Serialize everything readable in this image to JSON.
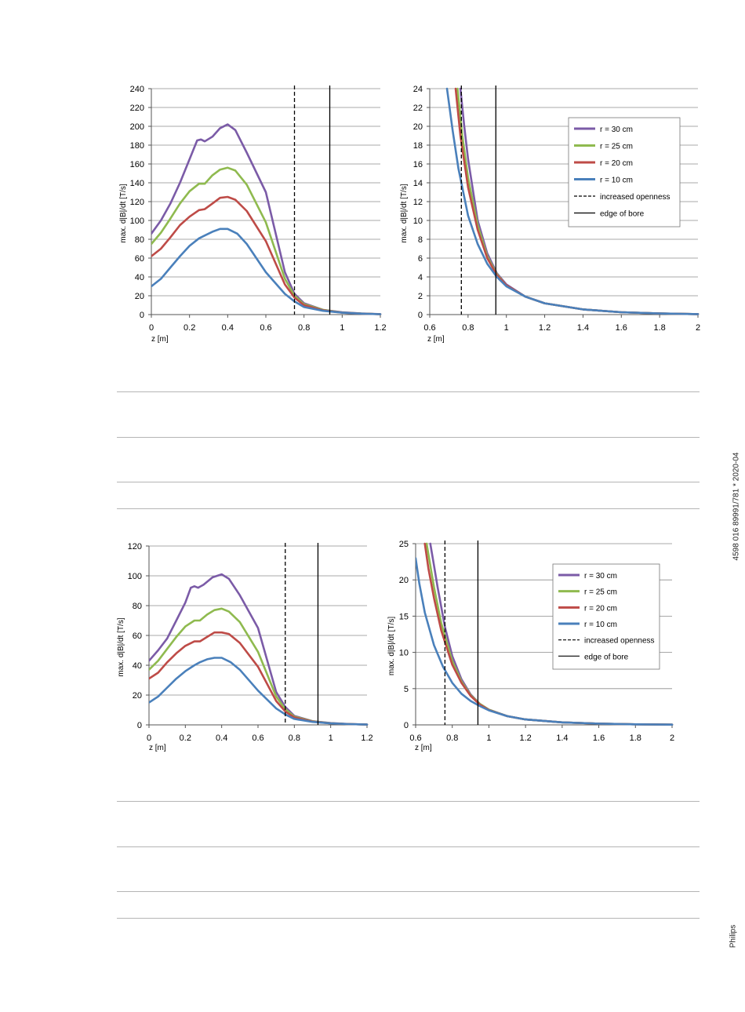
{
  "side": {
    "doc_code": "4598 016 89991/781 * 2020-04",
    "brand": "Philips"
  },
  "colors": {
    "r30": "#7b5ba7",
    "r25": "#8fba4f",
    "r20": "#be4b47",
    "r10": "#4a80bb",
    "grid": "#8c8c8c",
    "vline": "#000000"
  },
  "chart_data": [
    {
      "id": "top-left",
      "type": "line",
      "xlabel": "z [m]",
      "ylabel": "max. d|B|/dt  [T/s]",
      "xlim": [
        0,
        1.2
      ],
      "ylim": [
        0,
        240
      ],
      "xticks": [
        0,
        0.2,
        0.4,
        0.6,
        0.8,
        1,
        1.2
      ],
      "xtick_labels": [
        "0",
        "0.2",
        "0.4",
        "0.6",
        "0.8",
        "1",
        "1.2"
      ],
      "yticks": [
        0,
        20,
        40,
        60,
        80,
        100,
        120,
        140,
        160,
        180,
        200,
        220,
        240
      ],
      "ytick_labels": [
        "0",
        "20",
        "40",
        "60",
        "80",
        "100",
        "120",
        "140",
        "160",
        "180",
        "200",
        "220",
        "240"
      ],
      "grid": "horizontal",
      "vlines": [
        {
          "x": 0.75,
          "style": "dashed"
        },
        {
          "x": 0.935,
          "style": "solid"
        }
      ],
      "series": [
        {
          "name": "r = 30 cm",
          "color_key": "r30",
          "x": [
            0,
            0.05,
            0.1,
            0.15,
            0.2,
            0.24,
            0.26,
            0.28,
            0.32,
            0.36,
            0.4,
            0.44,
            0.5,
            0.6,
            0.7,
            0.75,
            0.8,
            0.9,
            1.0,
            1.1,
            1.2
          ],
          "y": [
            86,
            100,
            118,
            140,
            165,
            185,
            186,
            184,
            189,
            198,
            202,
            196,
            172,
            130,
            45,
            22,
            12,
            5,
            2.5,
            1.2,
            0.5
          ]
        },
        {
          "name": "r = 25 cm",
          "color_key": "r25",
          "x": [
            0,
            0.05,
            0.1,
            0.15,
            0.2,
            0.25,
            0.28,
            0.32,
            0.36,
            0.4,
            0.44,
            0.5,
            0.6,
            0.7,
            0.75,
            0.8,
            0.9,
            1.0,
            1.1,
            1.2
          ],
          "y": [
            75,
            87,
            102,
            118,
            131,
            139,
            139,
            148,
            154,
            156,
            153,
            138,
            98,
            38,
            20,
            11,
            5,
            2.2,
            1.1,
            0.4
          ]
        },
        {
          "name": "r = 20 cm",
          "color_key": "r20",
          "x": [
            0,
            0.05,
            0.1,
            0.15,
            0.2,
            0.25,
            0.28,
            0.32,
            0.36,
            0.4,
            0.44,
            0.5,
            0.6,
            0.7,
            0.75,
            0.8,
            0.9,
            1.0,
            1.1,
            1.2
          ],
          "y": [
            62,
            70,
            82,
            95,
            104,
            111,
            112,
            118,
            124,
            125,
            122,
            110,
            78,
            32,
            18,
            10,
            4.5,
            2,
            1,
            0.4
          ]
        },
        {
          "name": "r = 10 cm",
          "color_key": "r10",
          "x": [
            0,
            0.05,
            0.1,
            0.15,
            0.2,
            0.25,
            0.28,
            0.32,
            0.36,
            0.4,
            0.45,
            0.5,
            0.6,
            0.7,
            0.75,
            0.8,
            0.9,
            1.0,
            1.1,
            1.2
          ],
          "y": [
            30,
            38,
            50,
            62,
            73,
            81,
            84,
            88,
            91,
            91,
            86,
            75,
            45,
            22,
            14,
            8,
            4,
            2,
            1,
            0.4
          ]
        }
      ]
    },
    {
      "id": "top-right",
      "type": "line",
      "xlabel": "z [m]",
      "ylabel": "max. d|B|/dt  [T/s]",
      "xlim": [
        0.6,
        2
      ],
      "ylim": [
        0,
        24
      ],
      "xticks": [
        0.6,
        0.8,
        1,
        1.2,
        1.4,
        1.6,
        1.8,
        2
      ],
      "xtick_labels": [
        "0.6",
        "0.8",
        "1",
        "1.2",
        "1.4",
        "1.6",
        "1.8",
        "2"
      ],
      "yticks": [
        0,
        2,
        4,
        6,
        8,
        10,
        12,
        14,
        16,
        18,
        20,
        22,
        24
      ],
      "ytick_labels": [
        "0",
        "2",
        "4",
        "6",
        "8",
        "10",
        "12",
        "14",
        "16",
        "18",
        "20",
        "22",
        "24"
      ],
      "grid": "horizontal",
      "vlines": [
        {
          "x": 0.765,
          "style": "dashed"
        },
        {
          "x": 0.945,
          "style": "solid"
        }
      ],
      "legend": {
        "position": "top-right",
        "entries": [
          {
            "label": "r = 30 cm",
            "color_key": "r30",
            "style": "thick"
          },
          {
            "label": "r = 25 cm",
            "color_key": "r25",
            "style": "thick"
          },
          {
            "label": "r = 20 cm",
            "color_key": "r20",
            "style": "thick"
          },
          {
            "label": "r = 10 cm",
            "color_key": "r10",
            "style": "thick"
          },
          {
            "label": "increased openness",
            "color_key": "vline",
            "style": "dashed"
          },
          {
            "label": "edge of bore",
            "color_key": "vline",
            "style": "solid"
          }
        ]
      },
      "series": [
        {
          "name": "r = 30 cm",
          "color_key": "r30",
          "x": [
            0.76,
            0.78,
            0.8,
            0.85,
            0.9,
            0.95,
            1.0,
            1.1,
            1.2,
            1.4,
            1.6,
            1.8,
            2.0
          ],
          "y": [
            24,
            20,
            16.5,
            10,
            6.5,
            4.4,
            3.2,
            1.9,
            1.2,
            0.55,
            0.25,
            0.12,
            0.05
          ]
        },
        {
          "name": "r = 25 cm",
          "color_key": "r25",
          "x": [
            0.745,
            0.77,
            0.8,
            0.85,
            0.9,
            0.95,
            1.0,
            1.1,
            1.2,
            1.4,
            1.6,
            1.8,
            2.0
          ],
          "y": [
            24,
            19,
            14.5,
            9.5,
            6.2,
            4.3,
            3.1,
            1.9,
            1.2,
            0.55,
            0.25,
            0.12,
            0.05
          ]
        },
        {
          "name": "r = 20 cm",
          "color_key": "r20",
          "x": [
            0.735,
            0.76,
            0.8,
            0.85,
            0.9,
            0.95,
            1.0,
            1.1,
            1.2,
            1.4,
            1.6,
            1.8,
            2.0
          ],
          "y": [
            24,
            19,
            13.5,
            9,
            6,
            4.2,
            3.1,
            1.9,
            1.2,
            0.55,
            0.25,
            0.12,
            0.05
          ]
        },
        {
          "name": "r = 10 cm",
          "color_key": "r10",
          "x": [
            0.69,
            0.72,
            0.75,
            0.8,
            0.85,
            0.9,
            0.95,
            1.0,
            1.1,
            1.2,
            1.4,
            1.6,
            1.8,
            2.0
          ],
          "y": [
            24,
            19.5,
            15.5,
            10.5,
            7.5,
            5.4,
            4.0,
            3.0,
            1.9,
            1.2,
            0.55,
            0.25,
            0.12,
            0.05
          ]
        }
      ]
    },
    {
      "id": "bottom-left",
      "type": "line",
      "xlabel": "z [m]",
      "ylabel": "max. d|B|/dt [T/s]",
      "xlim": [
        0,
        1.2
      ],
      "ylim": [
        0,
        120
      ],
      "xticks": [
        0,
        0.2,
        0.4,
        0.6,
        0.8,
        1,
        1.2
      ],
      "xtick_labels": [
        "0",
        "0.2",
        "0.4",
        "0.6",
        "0.8",
        "1",
        "1.2"
      ],
      "yticks": [
        0,
        20,
        40,
        60,
        80,
        100,
        120
      ],
      "ytick_labels": [
        "0",
        "20",
        "40",
        "60",
        "80",
        "100",
        "120"
      ],
      "grid": "horizontal",
      "vlines": [
        {
          "x": 0.75,
          "style": "dashed"
        },
        {
          "x": 0.93,
          "style": "solid"
        }
      ],
      "series": [
        {
          "name": "r = 30 cm",
          "color_key": "r30",
          "x": [
            0,
            0.05,
            0.1,
            0.15,
            0.2,
            0.23,
            0.25,
            0.27,
            0.3,
            0.35,
            0.4,
            0.44,
            0.5,
            0.6,
            0.7,
            0.75,
            0.8,
            0.9,
            1.0,
            1.1,
            1.2
          ],
          "y": [
            43,
            50,
            58,
            70,
            82,
            92,
            93,
            92,
            94,
            99,
            101,
            98,
            87,
            65,
            22,
            12,
            6,
            2.5,
            1.2,
            0.6,
            0.2
          ]
        },
        {
          "name": "r = 25 cm",
          "color_key": "r25",
          "x": [
            0,
            0.05,
            0.1,
            0.15,
            0.2,
            0.25,
            0.28,
            0.32,
            0.36,
            0.4,
            0.44,
            0.5,
            0.6,
            0.7,
            0.75,
            0.8,
            0.9,
            1.0,
            1.1,
            1.2
          ],
          "y": [
            37,
            43,
            51,
            59,
            66,
            70,
            70,
            74,
            77,
            78,
            76,
            69,
            49,
            19,
            10.5,
            5.5,
            2.4,
            1.1,
            0.5,
            0.2
          ]
        },
        {
          "name": "r = 20 cm",
          "color_key": "r20",
          "x": [
            0,
            0.05,
            0.1,
            0.15,
            0.2,
            0.25,
            0.28,
            0.32,
            0.36,
            0.4,
            0.44,
            0.5,
            0.6,
            0.7,
            0.75,
            0.8,
            0.9,
            1.0,
            1.1,
            1.2
          ],
          "y": [
            31,
            35,
            42,
            48,
            53,
            56,
            56,
            59,
            62,
            62,
            61,
            55,
            39,
            16,
            9,
            5,
            2.2,
            1,
            0.5,
            0.2
          ]
        },
        {
          "name": "r = 10 cm",
          "color_key": "r10",
          "x": [
            0,
            0.05,
            0.1,
            0.15,
            0.2,
            0.25,
            0.28,
            0.32,
            0.36,
            0.4,
            0.45,
            0.5,
            0.6,
            0.7,
            0.75,
            0.8,
            0.9,
            1.0,
            1.1,
            1.2
          ],
          "y": [
            15,
            19,
            25,
            31,
            36,
            40,
            42,
            44,
            45,
            45,
            42,
            37,
            23,
            11,
            7,
            4,
            2,
            1,
            0.5,
            0.2
          ]
        }
      ]
    },
    {
      "id": "bottom-right",
      "type": "line",
      "xlabel": "z [m]",
      "ylabel": "max. d|B|/dt [T/s]",
      "xlim": [
        0.6,
        2
      ],
      "ylim": [
        0,
        25
      ],
      "xticks": [
        0.6,
        0.8,
        1,
        1.2,
        1.4,
        1.6,
        1.8,
        2
      ],
      "xtick_labels": [
        "0.6",
        "0.8",
        "1",
        "1.2",
        "1.4",
        "1.6",
        "1.8",
        "2"
      ],
      "yticks": [
        0,
        5,
        10,
        15,
        20,
        25
      ],
      "ytick_labels": [
        "0",
        "5",
        "10",
        "15",
        "20",
        "25"
      ],
      "grid": "horizontal",
      "vlines": [
        {
          "x": 0.76,
          "style": "dashed"
        },
        {
          "x": 0.94,
          "style": "solid"
        }
      ],
      "legend": {
        "position": "top-right",
        "entries": [
          {
            "label": "r = 30 cm",
            "color_key": "r30",
            "style": "thick"
          },
          {
            "label": "r = 25 cm",
            "color_key": "r25",
            "style": "thick"
          },
          {
            "label": "r = 20 cm",
            "color_key": "r20",
            "style": "thick"
          },
          {
            "label": "r = 10 cm",
            "color_key": "r10",
            "style": "thick"
          },
          {
            "label": "increased openness",
            "color_key": "vline",
            "style": "dashed"
          },
          {
            "label": "edge of bore",
            "color_key": "vline",
            "style": "solid"
          }
        ]
      },
      "series": [
        {
          "name": "r = 30 cm",
          "color_key": "r30",
          "x": [
            0.68,
            0.7,
            0.72,
            0.76,
            0.8,
            0.85,
            0.9,
            0.95,
            1.0,
            1.1,
            1.2,
            1.4,
            1.6,
            1.8,
            2.0
          ],
          "y": [
            25,
            22,
            19,
            13.5,
            9.5,
            6.3,
            4.2,
            2.9,
            2.1,
            1.2,
            0.75,
            0.35,
            0.17,
            0.08,
            0.03
          ]
        },
        {
          "name": "r = 25 cm",
          "color_key": "r25",
          "x": [
            0.66,
            0.68,
            0.7,
            0.74,
            0.8,
            0.85,
            0.9,
            0.95,
            1.0,
            1.1,
            1.2,
            1.4,
            1.6,
            1.8,
            2.0
          ],
          "y": [
            25,
            22,
            19,
            14,
            8.8,
            6,
            4.1,
            2.9,
            2.1,
            1.2,
            0.75,
            0.35,
            0.17,
            0.08,
            0.03
          ]
        },
        {
          "name": "r = 20 cm",
          "color_key": "r20",
          "x": [
            0.65,
            0.67,
            0.7,
            0.74,
            0.8,
            0.85,
            0.9,
            0.95,
            1.0,
            1.1,
            1.2,
            1.4,
            1.6,
            1.8,
            2.0
          ],
          "y": [
            25,
            21.5,
            17.5,
            13,
            8.3,
            5.8,
            4.0,
            2.8,
            2.05,
            1.2,
            0.75,
            0.35,
            0.17,
            0.08,
            0.03
          ]
        },
        {
          "name": "r = 10 cm",
          "color_key": "r10",
          "x": [
            0.6,
            0.62,
            0.65,
            0.7,
            0.75,
            0.8,
            0.85,
            0.9,
            0.95,
            1.0,
            1.1,
            1.2,
            1.4,
            1.6,
            1.8,
            2.0
          ],
          "y": [
            23,
            19.5,
            15.5,
            11,
            8,
            5.8,
            4.3,
            3.3,
            2.6,
            2.0,
            1.2,
            0.75,
            0.35,
            0.17,
            0.08,
            0.03
          ]
        }
      ]
    }
  ]
}
